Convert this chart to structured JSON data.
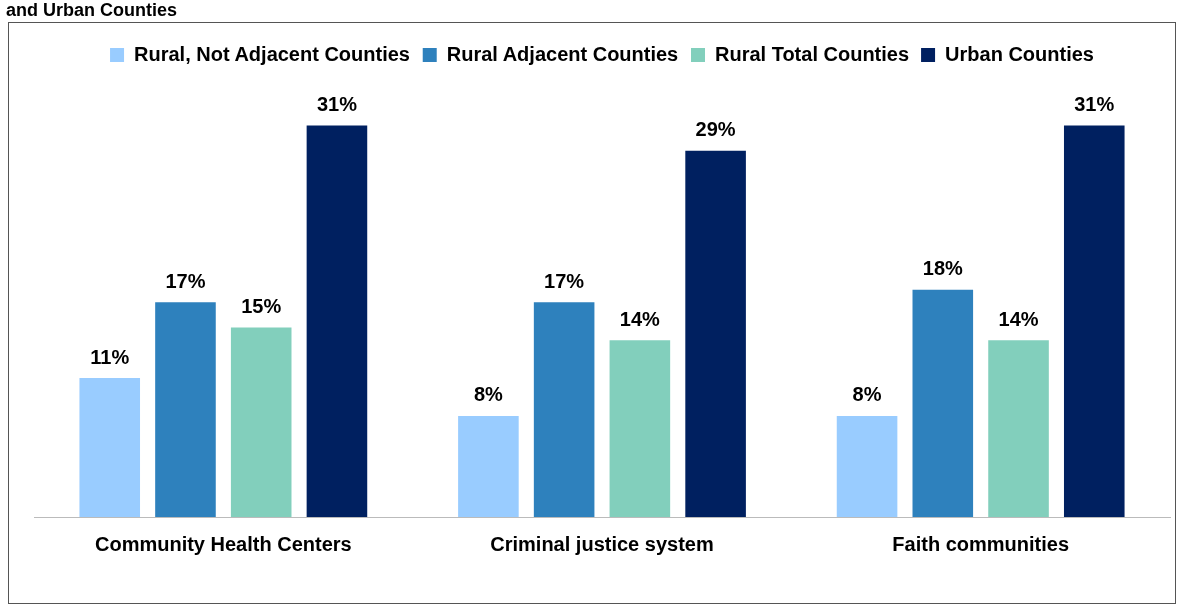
{
  "chart_data": {
    "type": "bar",
    "title": "and Urban Counties",
    "categories": [
      "Community Health Centers",
      "Criminal justice system",
      "Faith communities"
    ],
    "series": [
      {
        "name": "Rural, Not Adjacent Counties",
        "color": "#99ccff",
        "values": [
          11,
          8,
          8
        ],
        "value_labels": [
          "11%",
          "8%",
          "8%"
        ]
      },
      {
        "name": "Rural Adjacent Counties",
        "color": "#2e81bd",
        "values": [
          17,
          17,
          18
        ],
        "value_labels": [
          "17%",
          "17%",
          "18%"
        ]
      },
      {
        "name": "Rural Total Counties",
        "color": "#82cfbc",
        "values": [
          15,
          14,
          14
        ],
        "value_labels": [
          "15%",
          "14%",
          "14%"
        ]
      },
      {
        "name": "Urban Counties",
        "color": "#002060",
        "values": [
          31,
          29,
          31
        ],
        "value_labels": [
          "31%",
          "29%",
          "31%"
        ]
      }
    ],
    "legend": "top",
    "grid": false
  }
}
